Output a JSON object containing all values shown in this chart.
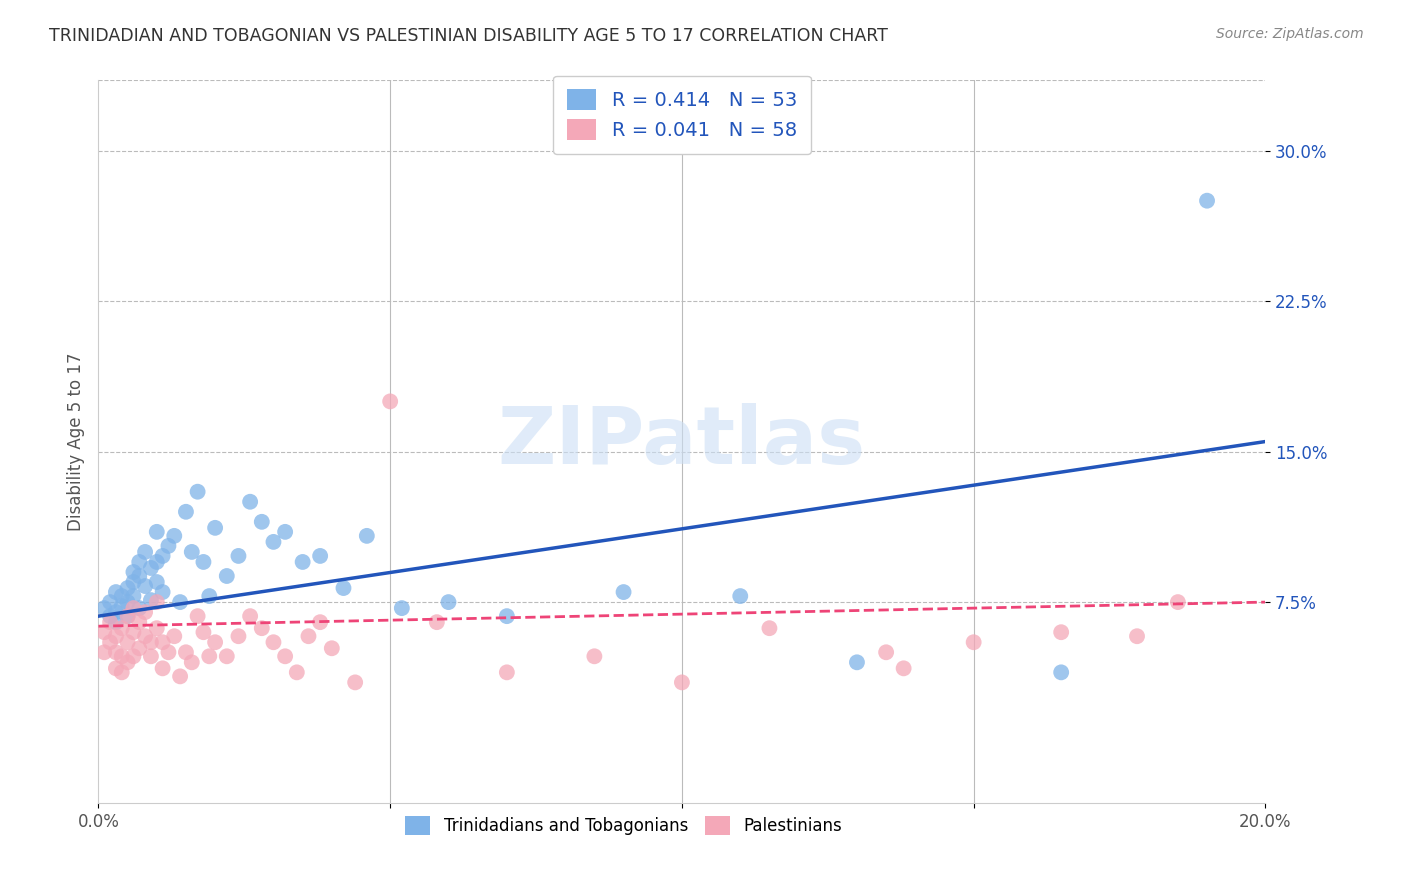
{
  "title": "TRINIDADIAN AND TOBAGONIAN VS PALESTINIAN DISABILITY AGE 5 TO 17 CORRELATION CHART",
  "source": "Source: ZipAtlas.com",
  "ylabel": "Disability Age 5 to 17",
  "xlim": [
    0.0,
    0.2
  ],
  "ylim": [
    -0.025,
    0.335
  ],
  "xticks": [
    0.0,
    0.05,
    0.1,
    0.15,
    0.2
  ],
  "xtick_labels": [
    "0.0%",
    "",
    "",
    "",
    "20.0%"
  ],
  "yticks": [
    0.075,
    0.15,
    0.225,
    0.3
  ],
  "ytick_labels": [
    "7.5%",
    "15.0%",
    "22.5%",
    "30.0%"
  ],
  "grid_color": "#bbbbbb",
  "background_color": "#ffffff",
  "blue_color": "#7fb3e8",
  "pink_color": "#f4a8b8",
  "blue_line_color": "#2255bb",
  "pink_line_color": "#ee4477",
  "legend_label_blue": "R = 0.414   N = 53",
  "legend_label_pink": "R = 0.041   N = 58",
  "watermark_text": "ZIPatlas",
  "series_blue": {
    "x": [
      0.001,
      0.002,
      0.002,
      0.003,
      0.003,
      0.003,
      0.004,
      0.004,
      0.005,
      0.005,
      0.005,
      0.006,
      0.006,
      0.006,
      0.007,
      0.007,
      0.007,
      0.008,
      0.008,
      0.009,
      0.009,
      0.01,
      0.01,
      0.01,
      0.011,
      0.011,
      0.012,
      0.013,
      0.014,
      0.015,
      0.016,
      0.017,
      0.018,
      0.019,
      0.02,
      0.022,
      0.024,
      0.026,
      0.028,
      0.03,
      0.032,
      0.035,
      0.038,
      0.042,
      0.046,
      0.052,
      0.06,
      0.07,
      0.09,
      0.11,
      0.13,
      0.165,
      0.19
    ],
    "y": [
      0.072,
      0.068,
      0.075,
      0.07,
      0.08,
      0.065,
      0.078,
      0.073,
      0.082,
      0.075,
      0.068,
      0.085,
      0.09,
      0.078,
      0.095,
      0.088,
      0.072,
      0.1,
      0.083,
      0.092,
      0.076,
      0.11,
      0.095,
      0.085,
      0.098,
      0.08,
      0.103,
      0.108,
      0.075,
      0.12,
      0.1,
      0.13,
      0.095,
      0.078,
      0.112,
      0.088,
      0.098,
      0.125,
      0.115,
      0.105,
      0.11,
      0.095,
      0.098,
      0.082,
      0.108,
      0.072,
      0.075,
      0.068,
      0.08,
      0.078,
      0.045,
      0.04,
      0.275
    ]
  },
  "series_pink": {
    "x": [
      0.001,
      0.001,
      0.002,
      0.002,
      0.003,
      0.003,
      0.003,
      0.004,
      0.004,
      0.004,
      0.005,
      0.005,
      0.005,
      0.006,
      0.006,
      0.006,
      0.007,
      0.007,
      0.008,
      0.008,
      0.009,
      0.009,
      0.01,
      0.01,
      0.011,
      0.011,
      0.012,
      0.013,
      0.014,
      0.015,
      0.016,
      0.017,
      0.018,
      0.019,
      0.02,
      0.022,
      0.024,
      0.026,
      0.028,
      0.03,
      0.032,
      0.034,
      0.036,
      0.038,
      0.04,
      0.044,
      0.05,
      0.058,
      0.07,
      0.085,
      0.1,
      0.115,
      0.135,
      0.15,
      0.165,
      0.178,
      0.138,
      0.185
    ],
    "y": [
      0.06,
      0.05,
      0.065,
      0.055,
      0.042,
      0.058,
      0.05,
      0.062,
      0.048,
      0.04,
      0.068,
      0.055,
      0.045,
      0.072,
      0.06,
      0.048,
      0.065,
      0.052,
      0.07,
      0.058,
      0.055,
      0.048,
      0.062,
      0.075,
      0.055,
      0.042,
      0.05,
      0.058,
      0.038,
      0.05,
      0.045,
      0.068,
      0.06,
      0.048,
      0.055,
      0.048,
      0.058,
      0.068,
      0.062,
      0.055,
      0.048,
      0.04,
      0.058,
      0.065,
      0.052,
      0.035,
      0.175,
      0.065,
      0.04,
      0.048,
      0.035,
      0.062,
      0.05,
      0.055,
      0.06,
      0.058,
      0.042,
      0.075
    ]
  }
}
